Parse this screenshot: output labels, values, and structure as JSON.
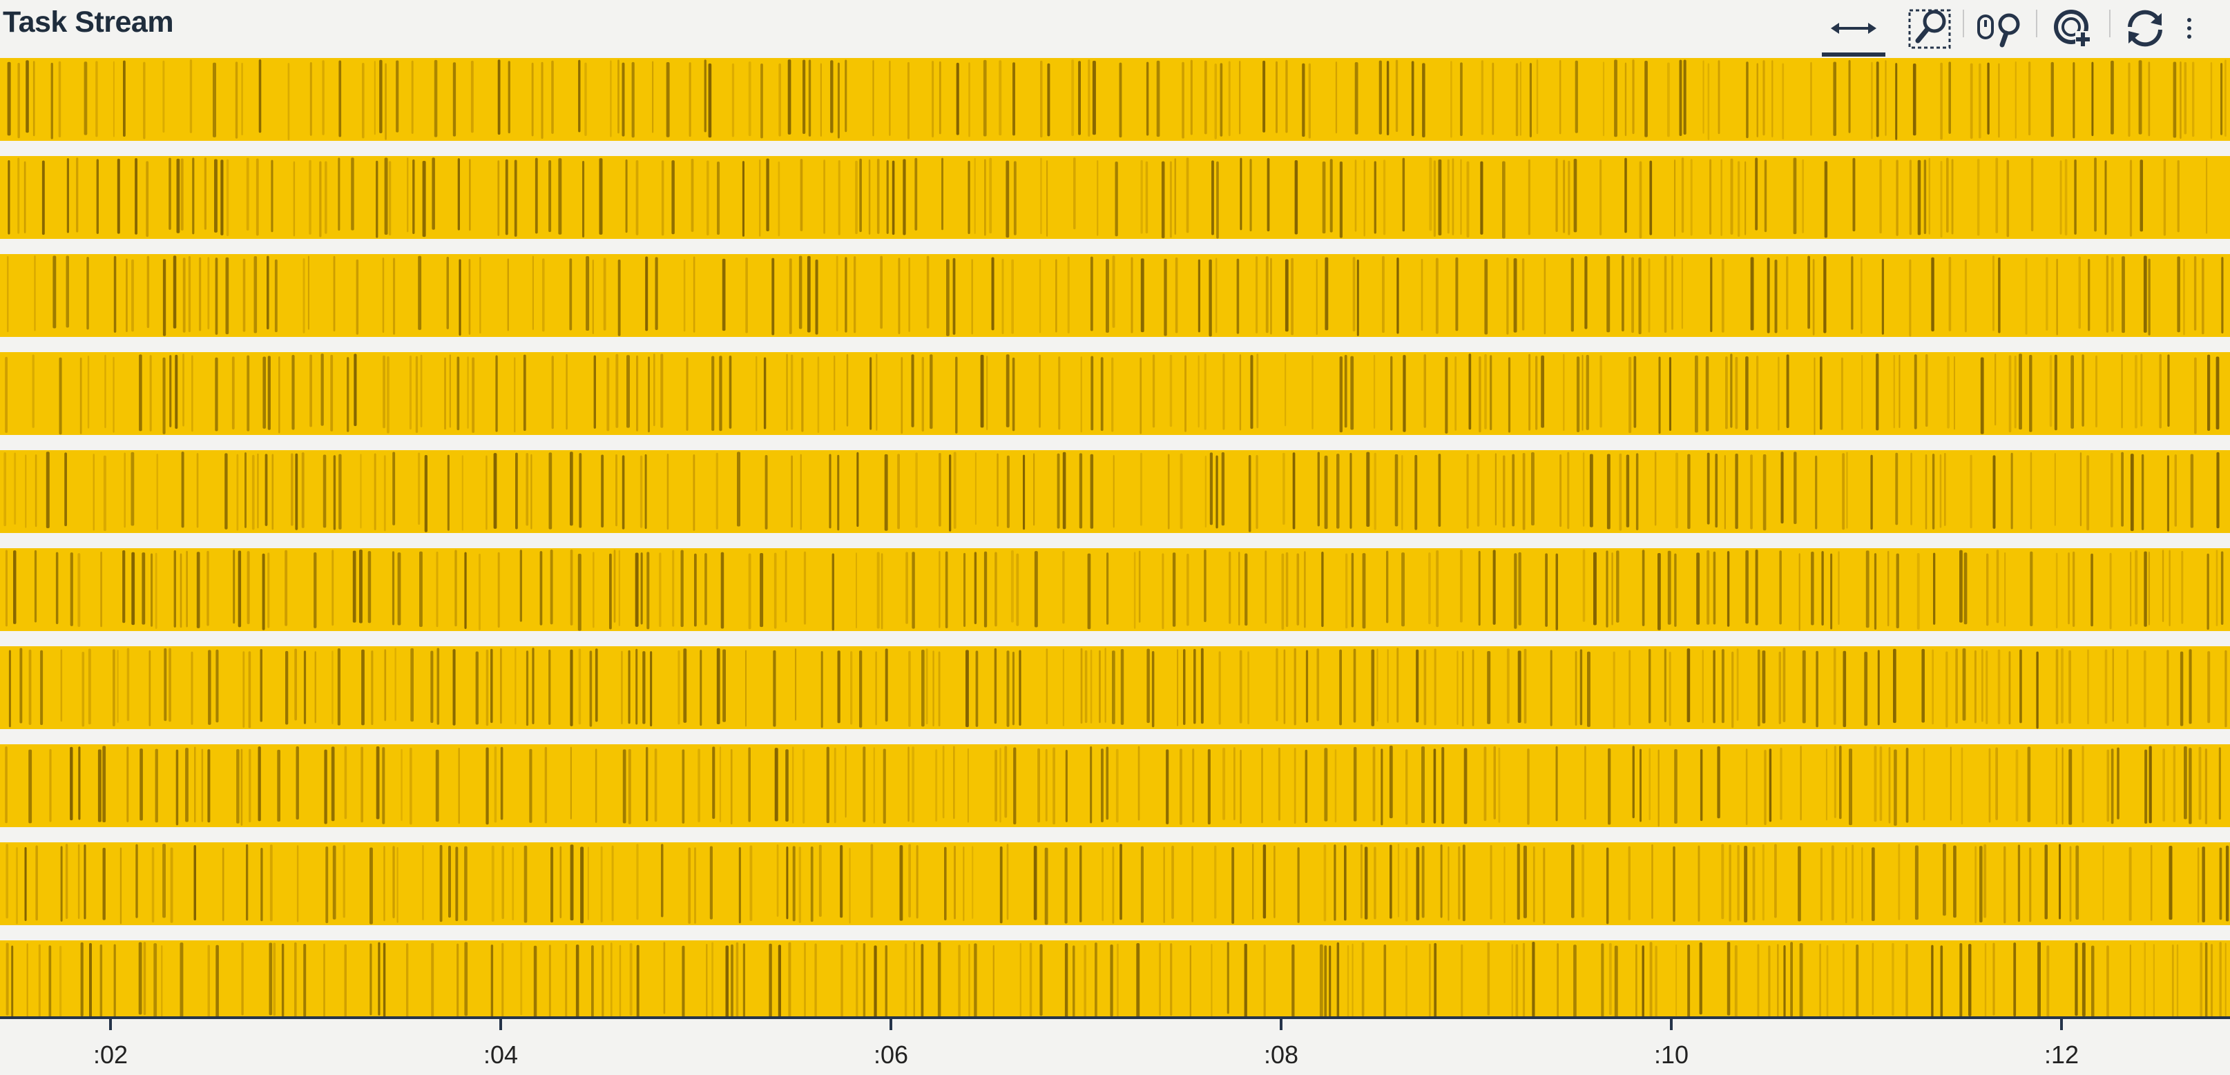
{
  "header": {
    "title": "Task Stream"
  },
  "toolbar": {
    "tools": [
      {
        "name": "pan-tool",
        "icon": "pan-arrows-icon",
        "active": true
      },
      {
        "name": "box-zoom-tool",
        "icon": "box-zoom-icon",
        "active": false
      },
      {
        "name": "wheel-zoom-tool",
        "icon": "wheel-zoom-icon",
        "active": false
      },
      {
        "name": "zoom-in-tool",
        "icon": "zoom-in-icon",
        "active": false
      },
      {
        "name": "reset-tool",
        "icon": "reset-icon",
        "active": false
      }
    ],
    "more_icon": "more-vertical-icon"
  },
  "chart_data": {
    "type": "timeline",
    "title": "",
    "rows": 10,
    "x_ticks": [
      ":02",
      ":04",
      ":06",
      ":08",
      ":10",
      ":12"
    ],
    "colors": {
      "task_fill": "#f5c400",
      "task_stroke_dark": "#7d5e00",
      "task_stroke_mid": "#b88a00",
      "background": "#f3f3f1",
      "axis": "#25344a"
    }
  }
}
